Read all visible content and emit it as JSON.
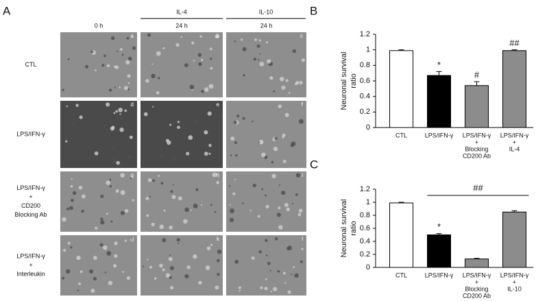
{
  "figure_labels": {
    "a": "A",
    "b": "B",
    "c": "C"
  },
  "panel_a": {
    "group_headers": [
      "IL-4",
      "IL-10"
    ],
    "column_headers": [
      "0 h",
      "24 h",
      "24 h"
    ],
    "row_labels": [
      [
        "CTL"
      ],
      [
        "LPS/IFN-γ"
      ],
      [
        "LPS/IFN-γ",
        "+",
        "CD200",
        "Blocking Ab"
      ],
      [
        "LPS/IFN-γ",
        "+",
        "Interleukin"
      ]
    ],
    "image_labels": [
      "a",
      "b",
      "c",
      "d",
      "e",
      "f",
      "g",
      "h",
      "i",
      "j",
      "k",
      "l"
    ]
  },
  "chart_data": [
    {
      "type": "bar",
      "y_label": [
        "Neuronal survival",
        "ratio"
      ],
      "categories": [
        [
          "CTL"
        ],
        [
          "LPS/IFN-γ"
        ],
        [
          "LPS/IFN-γ",
          "+",
          "Blocking",
          "CD200 Ab"
        ],
        [
          "LPS/IFN-γ",
          "+",
          "IL-4"
        ]
      ],
      "values": [
        0.99,
        0.67,
        0.54,
        0.99
      ],
      "errors": [
        0.01,
        0.05,
        0.05,
        0.01
      ],
      "colors": [
        "#ffffff",
        "#000000",
        "#8c8c8c",
        "#8c8c8c"
      ],
      "markers": [
        null,
        "*",
        "#",
        "##"
      ],
      "ylim": [
        0,
        1.2
      ],
      "yticks": [
        0,
        0.2,
        0.4,
        0.6,
        0.8,
        1,
        1.2
      ]
    },
    {
      "type": "bar",
      "y_label": [
        "Neuronal survival",
        "ratio"
      ],
      "categories": [
        [
          "CTL"
        ],
        [
          "LPS/IFN-γ"
        ],
        [
          "LPS/IFN-γ",
          "+",
          "Blocking",
          "CD200 Ab"
        ],
        [
          "LPS/IFN-γ",
          "+",
          "IL-10"
        ]
      ],
      "values": [
        0.99,
        0.5,
        0.13,
        0.85
      ],
      "errors": [
        0.01,
        0.02,
        0.01,
        0.02
      ],
      "colors": [
        "#ffffff",
        "#000000",
        "#8c8c8c",
        "#8c8c8c"
      ],
      "markers": [
        null,
        "*",
        null,
        null
      ],
      "bracket_label": "##",
      "ylim": [
        0,
        1.2
      ],
      "yticks": [
        0,
        0.2,
        0.4,
        0.6,
        0.8,
        1,
        1.2
      ]
    }
  ]
}
